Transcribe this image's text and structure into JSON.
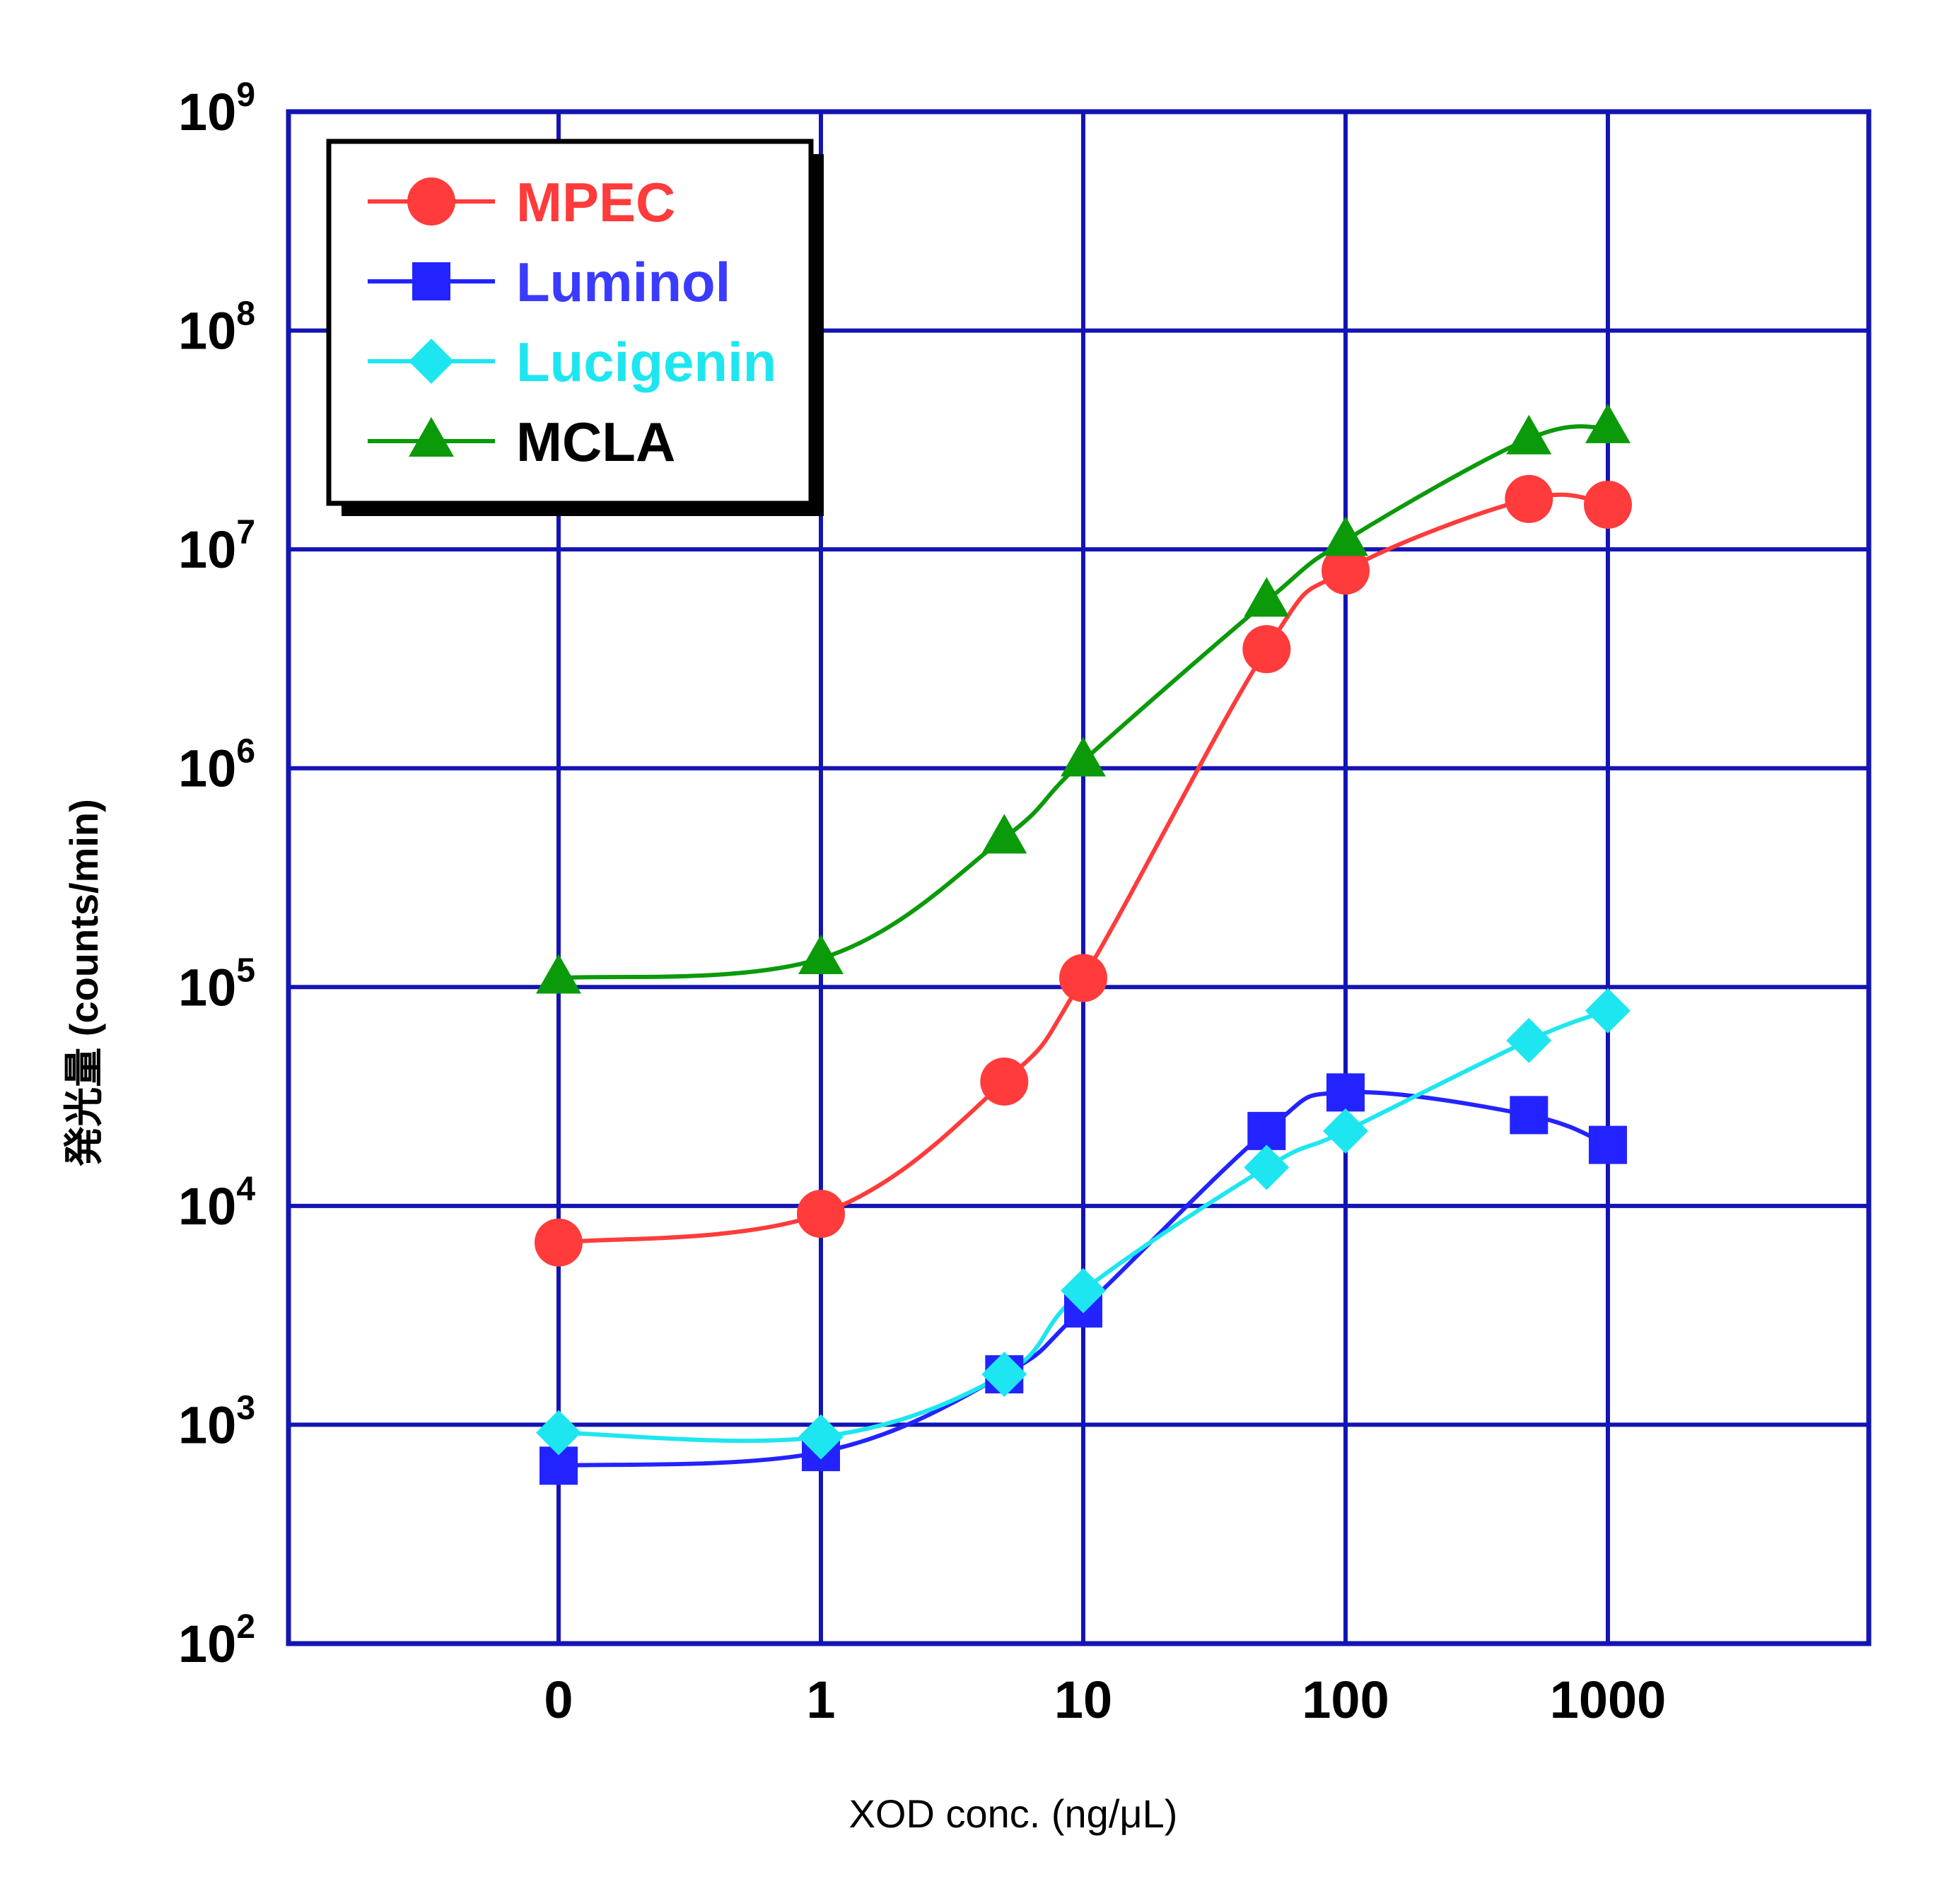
{
  "chart_data": {
    "type": "line",
    "xlabel": "XOD conc. (ng/μL)",
    "ylabel": "発光量 (counts/min)",
    "x_tick_labels": [
      "0",
      "1",
      "10",
      "100",
      "1000"
    ],
    "y_scale": "log",
    "ylim": [
      100,
      1000000000
    ],
    "y_ticks": [
      {
        "base": "10",
        "exp": "2"
      },
      {
        "base": "10",
        "exp": "3"
      },
      {
        "base": "10",
        "exp": "4"
      },
      {
        "base": "10",
        "exp": "5"
      },
      {
        "base": "10",
        "exp": "6"
      },
      {
        "base": "10",
        "exp": "7"
      },
      {
        "base": "10",
        "exp": "8"
      },
      {
        "base": "10",
        "exp": "9"
      }
    ],
    "grid": true,
    "legend_position": "top-left",
    "series": [
      {
        "name": "MPEC",
        "color": "#ff3b3b",
        "marker": "circle",
        "label_color": "#ff3b3b",
        "points": [
          {
            "x": 0,
            "y": 6800
          },
          {
            "x": 1,
            "y": 9200
          },
          {
            "x": 5,
            "y": 37000
          },
          {
            "x": 10,
            "y": 110000
          },
          {
            "x": 50,
            "y": 3500000
          },
          {
            "x": 100,
            "y": 8000000
          },
          {
            "x": 500,
            "y": 17000000
          },
          {
            "x": 1000,
            "y": 16000000
          }
        ]
      },
      {
        "name": "Luminol",
        "color": "#2323ff",
        "marker": "square",
        "label_color": "#3b3bff",
        "points": [
          {
            "x": 0,
            "y": 650
          },
          {
            "x": 1,
            "y": 750
          },
          {
            "x": 5,
            "y": 1700
          },
          {
            "x": 10,
            "y": 3400
          },
          {
            "x": 50,
            "y": 22000
          },
          {
            "x": 100,
            "y": 33000
          },
          {
            "x": 500,
            "y": 26000
          },
          {
            "x": 1000,
            "y": 19000
          }
        ]
      },
      {
        "name": "Lucigenin",
        "color": "#1ee6f0",
        "marker": "diamond",
        "label_color": "#1ee6f0",
        "points": [
          {
            "x": 0,
            "y": 920
          },
          {
            "x": 1,
            "y": 880
          },
          {
            "x": 5,
            "y": 1700
          },
          {
            "x": 10,
            "y": 4100
          },
          {
            "x": 50,
            "y": 15000
          },
          {
            "x": 100,
            "y": 22000
          },
          {
            "x": 500,
            "y": 57000
          },
          {
            "x": 1000,
            "y": 78000
          }
        ]
      },
      {
        "name": "MCLA",
        "color": "#0a9a0a",
        "marker": "triangle",
        "label_color": "#000000",
        "points": [
          {
            "x": 0,
            "y": 110000
          },
          {
            "x": 1,
            "y": 135000
          },
          {
            "x": 5,
            "y": 480000
          },
          {
            "x": 10,
            "y": 1080000
          },
          {
            "x": 50,
            "y": 5800000
          },
          {
            "x": 100,
            "y": 11000000
          },
          {
            "x": 500,
            "y": 32000000
          },
          {
            "x": 1000,
            "y": 36000000
          }
        ]
      }
    ]
  }
}
